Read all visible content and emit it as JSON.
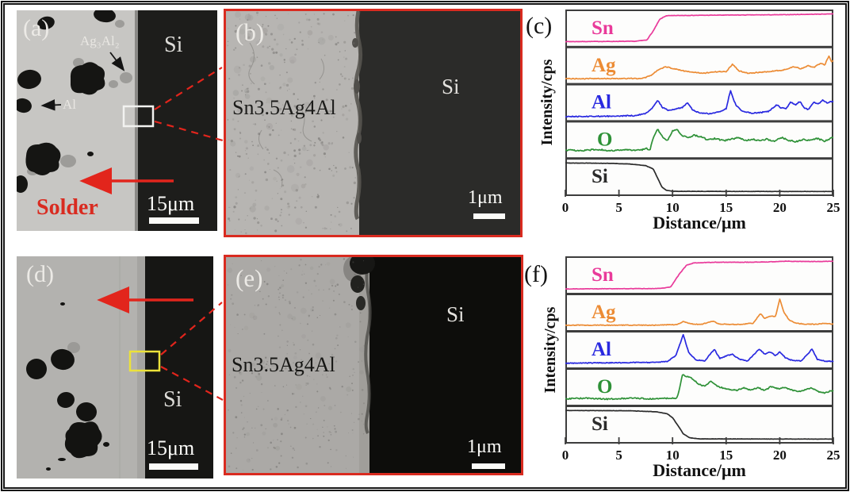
{
  "figure_labels": {
    "a": "(a)",
    "b": "(b)",
    "d": "(d)",
    "e": "(e)"
  },
  "panel_a": {
    "si": "Si",
    "ag3al2": "Ag₃Al₂",
    "al": "Al",
    "solder": "Solder",
    "scale": "15μm"
  },
  "panel_b": {
    "alloy": "Sn3.5Ag4Al",
    "si": "Si",
    "scale": "1μm"
  },
  "panel_d": {
    "si": "Si",
    "scale": "15μm"
  },
  "panel_e": {
    "alloy": "Sn3.5Ag4Al",
    "si": "Si",
    "scale": "1μm"
  },
  "colors": {
    "accent_red": "#e2251c",
    "panel_border_red": "#d92b20",
    "highlight_yellow": "#ece23a",
    "frame_gray": "#3d3d3d",
    "sn": "#e93a9a",
    "ag": "#ec8c35",
    "al": "#2929e0",
    "o": "#2e9137",
    "si": "#2b2b2b"
  },
  "chart_data": [
    {
      "id": "c",
      "panel_label": "(c)",
      "type": "line",
      "ylabel": "Intensity/cps",
      "xlabel": "Distance/μm",
      "x_range": [
        0,
        25
      ],
      "x_ticks": [
        0,
        5,
        10,
        15,
        20,
        25
      ],
      "grid": false,
      "legend": "inline-labels",
      "y_units": "normalized 0-1 per stacked subpanel",
      "series": [
        {
          "name": "Sn",
          "color": "#e93a9a",
          "noise": 0.006,
          "points": [
            [
              0,
              0.08
            ],
            [
              6.5,
              0.09
            ],
            [
              7.6,
              0.13
            ],
            [
              8.2,
              0.4
            ],
            [
              8.8,
              0.75
            ],
            [
              9.4,
              0.86
            ],
            [
              11,
              0.87
            ],
            [
              15,
              0.88
            ],
            [
              20,
              0.89
            ],
            [
              24,
              0.91
            ],
            [
              25,
              0.92
            ]
          ]
        },
        {
          "name": "Ag",
          "color": "#ec8c35",
          "noise": 0.013,
          "points": [
            [
              0,
              0.08
            ],
            [
              7.2,
              0.09
            ],
            [
              8,
              0.18
            ],
            [
              8.7,
              0.36
            ],
            [
              9.4,
              0.44
            ],
            [
              10.2,
              0.38
            ],
            [
              11,
              0.32
            ],
            [
              12,
              0.27
            ],
            [
              13,
              0.25
            ],
            [
              14,
              0.29
            ],
            [
              15,
              0.3
            ],
            [
              15.6,
              0.52
            ],
            [
              16.2,
              0.32
            ],
            [
              17,
              0.25
            ],
            [
              18,
              0.27
            ],
            [
              19,
              0.3
            ],
            [
              20,
              0.33
            ],
            [
              20.6,
              0.36
            ],
            [
              21.3,
              0.45
            ],
            [
              22,
              0.38
            ],
            [
              22.6,
              0.48
            ],
            [
              23.2,
              0.42
            ],
            [
              23.8,
              0.55
            ],
            [
              24.2,
              0.5
            ],
            [
              24.6,
              0.78
            ],
            [
              24.8,
              0.6
            ],
            [
              25,
              0.63
            ]
          ]
        },
        {
          "name": "Al",
          "color": "#2929e0",
          "noise": 0.016,
          "points": [
            [
              0,
              0.06
            ],
            [
              4,
              0.07
            ],
            [
              6.5,
              0.09
            ],
            [
              7.5,
              0.16
            ],
            [
              8.1,
              0.3
            ],
            [
              8.6,
              0.56
            ],
            [
              9.1,
              0.32
            ],
            [
              9.7,
              0.24
            ],
            [
              10.4,
              0.3
            ],
            [
              10.9,
              0.33
            ],
            [
              11.4,
              0.47
            ],
            [
              11.9,
              0.25
            ],
            [
              12.6,
              0.16
            ],
            [
              13.5,
              0.15
            ],
            [
              14.4,
              0.2
            ],
            [
              15,
              0.3
            ],
            [
              15.4,
              0.85
            ],
            [
              15.9,
              0.4
            ],
            [
              16.5,
              0.22
            ],
            [
              17.4,
              0.16
            ],
            [
              18.2,
              0.18
            ],
            [
              19,
              0.22
            ],
            [
              19.7,
              0.42
            ],
            [
              20.1,
              0.32
            ],
            [
              20.6,
              0.3
            ],
            [
              21,
              0.5
            ],
            [
              21.5,
              0.42
            ],
            [
              21.9,
              0.52
            ],
            [
              22.3,
              0.3
            ],
            [
              22.7,
              0.28
            ],
            [
              23.2,
              0.5
            ],
            [
              23.6,
              0.44
            ],
            [
              24,
              0.55
            ],
            [
              24.4,
              0.47
            ],
            [
              24.8,
              0.52
            ],
            [
              25,
              0.5
            ]
          ]
        },
        {
          "name": "O",
          "color": "#2e9137",
          "noise": 0.022,
          "points": [
            [
              0,
              0.17
            ],
            [
              1.5,
              0.15
            ],
            [
              3,
              0.19
            ],
            [
              4.5,
              0.15
            ],
            [
              6,
              0.18
            ],
            [
              7,
              0.16
            ],
            [
              7.6,
              0.22
            ],
            [
              7.9,
              0.18
            ],
            [
              8.2,
              0.55
            ],
            [
              8.6,
              0.8
            ],
            [
              9,
              0.6
            ],
            [
              9.5,
              0.45
            ],
            [
              10,
              0.75
            ],
            [
              10.4,
              0.8
            ],
            [
              10.9,
              0.6
            ],
            [
              11.5,
              0.55
            ],
            [
              12,
              0.62
            ],
            [
              12.7,
              0.56
            ],
            [
              13.3,
              0.48
            ],
            [
              14,
              0.52
            ],
            [
              14.8,
              0.45
            ],
            [
              15.5,
              0.5
            ],
            [
              16.2,
              0.55
            ],
            [
              16.8,
              0.45
            ],
            [
              17.5,
              0.5
            ],
            [
              18.2,
              0.44
            ],
            [
              18.8,
              0.5
            ],
            [
              19.5,
              0.43
            ],
            [
              20.2,
              0.55
            ],
            [
              20.8,
              0.46
            ],
            [
              21.5,
              0.42
            ],
            [
              22.2,
              0.5
            ],
            [
              22.8,
              0.46
            ],
            [
              23.5,
              0.52
            ],
            [
              24.2,
              0.44
            ],
            [
              24.6,
              0.5
            ],
            [
              25,
              0.56
            ]
          ]
        },
        {
          "name": "Si",
          "color": "#2b2b2b",
          "noise": 0.004,
          "points": [
            [
              0,
              0.9
            ],
            [
              4,
              0.89
            ],
            [
              6,
              0.87
            ],
            [
              7.5,
              0.82
            ],
            [
              8.2,
              0.72
            ],
            [
              8.6,
              0.45
            ],
            [
              9,
              0.18
            ],
            [
              9.4,
              0.08
            ],
            [
              10,
              0.045
            ],
            [
              25,
              0.04
            ]
          ]
        }
      ]
    },
    {
      "id": "f",
      "panel_label": "(f)",
      "type": "line",
      "ylabel": "Intensity/cps",
      "xlabel": "Distance/μm",
      "x_range": [
        0,
        25
      ],
      "x_ticks": [
        0,
        5,
        10,
        15,
        20,
        25
      ],
      "grid": false,
      "legend": "inline-labels",
      "y_units": "normalized 0-1 per stacked subpanel",
      "series": [
        {
          "name": "Sn",
          "color": "#e93a9a",
          "noise": 0.006,
          "points": [
            [
              0,
              0.07
            ],
            [
              8.5,
              0.08
            ],
            [
              9.8,
              0.12
            ],
            [
              10.6,
              0.5
            ],
            [
              11.3,
              0.78
            ],
            [
              12,
              0.85
            ],
            [
              14,
              0.87
            ],
            [
              17,
              0.87
            ],
            [
              19,
              0.88
            ],
            [
              20.5,
              0.9
            ],
            [
              23,
              0.89
            ],
            [
              25,
              0.9
            ]
          ]
        },
        {
          "name": "Ag",
          "color": "#ec8c35",
          "noise": 0.01,
          "points": [
            [
              0,
              0.1
            ],
            [
              4,
              0.1
            ],
            [
              8,
              0.1
            ],
            [
              10.4,
              0.12
            ],
            [
              11,
              0.21
            ],
            [
              11.7,
              0.14
            ],
            [
              12.6,
              0.12
            ],
            [
              13.8,
              0.22
            ],
            [
              14.3,
              0.14
            ],
            [
              15.5,
              0.12
            ],
            [
              16.5,
              0.13
            ],
            [
              17.5,
              0.16
            ],
            [
              18.2,
              0.45
            ],
            [
              18.6,
              0.3
            ],
            [
              19.2,
              0.38
            ],
            [
              19.6,
              0.36
            ],
            [
              20,
              0.88
            ],
            [
              20.4,
              0.48
            ],
            [
              20.9,
              0.25
            ],
            [
              21.5,
              0.16
            ],
            [
              22.5,
              0.13
            ],
            [
              23.5,
              0.13
            ],
            [
              24.2,
              0.16
            ],
            [
              25,
              0.13
            ]
          ]
        },
        {
          "name": "Al",
          "color": "#2929e0",
          "noise": 0.013,
          "points": [
            [
              0,
              0.08
            ],
            [
              4,
              0.09
            ],
            [
              8,
              0.1
            ],
            [
              9.5,
              0.13
            ],
            [
              10.3,
              0.3
            ],
            [
              11,
              0.93
            ],
            [
              11.5,
              0.4
            ],
            [
              12.2,
              0.18
            ],
            [
              13,
              0.15
            ],
            [
              13.9,
              0.5
            ],
            [
              14.4,
              0.22
            ],
            [
              15,
              0.3
            ],
            [
              15.6,
              0.35
            ],
            [
              16.2,
              0.2
            ],
            [
              17,
              0.15
            ],
            [
              18.1,
              0.5
            ],
            [
              18.6,
              0.35
            ],
            [
              19.1,
              0.42
            ],
            [
              19.6,
              0.3
            ],
            [
              20,
              0.42
            ],
            [
              20.5,
              0.25
            ],
            [
              21,
              0.18
            ],
            [
              22,
              0.14
            ],
            [
              23,
              0.5
            ],
            [
              23.5,
              0.2
            ],
            [
              24.2,
              0.14
            ],
            [
              25,
              0.13
            ]
          ]
        },
        {
          "name": "O",
          "color": "#2e9137",
          "noise": 0.018,
          "points": [
            [
              0,
              0.13
            ],
            [
              2,
              0.15
            ],
            [
              4,
              0.12
            ],
            [
              6,
              0.15
            ],
            [
              8,
              0.13
            ],
            [
              9.5,
              0.15
            ],
            [
              10.4,
              0.14
            ],
            [
              10.7,
              0.5
            ],
            [
              10.9,
              0.85
            ],
            [
              11.4,
              0.8
            ],
            [
              11.9,
              0.72
            ],
            [
              12.5,
              0.56
            ],
            [
              13,
              0.5
            ],
            [
              13.6,
              0.66
            ],
            [
              14.2,
              0.5
            ],
            [
              15,
              0.43
            ],
            [
              16,
              0.38
            ],
            [
              16.6,
              0.46
            ],
            [
              17.2,
              0.4
            ],
            [
              18,
              0.46
            ],
            [
              18.6,
              0.38
            ],
            [
              19.2,
              0.5
            ],
            [
              19.8,
              0.43
            ],
            [
              20.4,
              0.47
            ],
            [
              21,
              0.4
            ],
            [
              21.6,
              0.35
            ],
            [
              22.2,
              0.38
            ],
            [
              23,
              0.46
            ],
            [
              23.6,
              0.34
            ],
            [
              24.2,
              0.3
            ],
            [
              24.6,
              0.35
            ],
            [
              25,
              0.38
            ]
          ]
        },
        {
          "name": "Si",
          "color": "#2b2b2b",
          "noise": 0.004,
          "points": [
            [
              0,
              0.9
            ],
            [
              6,
              0.89
            ],
            [
              8.5,
              0.86
            ],
            [
              9.5,
              0.8
            ],
            [
              10,
              0.68
            ],
            [
              10.5,
              0.45
            ],
            [
              11,
              0.2
            ],
            [
              11.6,
              0.08
            ],
            [
              12.5,
              0.045
            ],
            [
              25,
              0.04
            ]
          ]
        }
      ]
    }
  ]
}
